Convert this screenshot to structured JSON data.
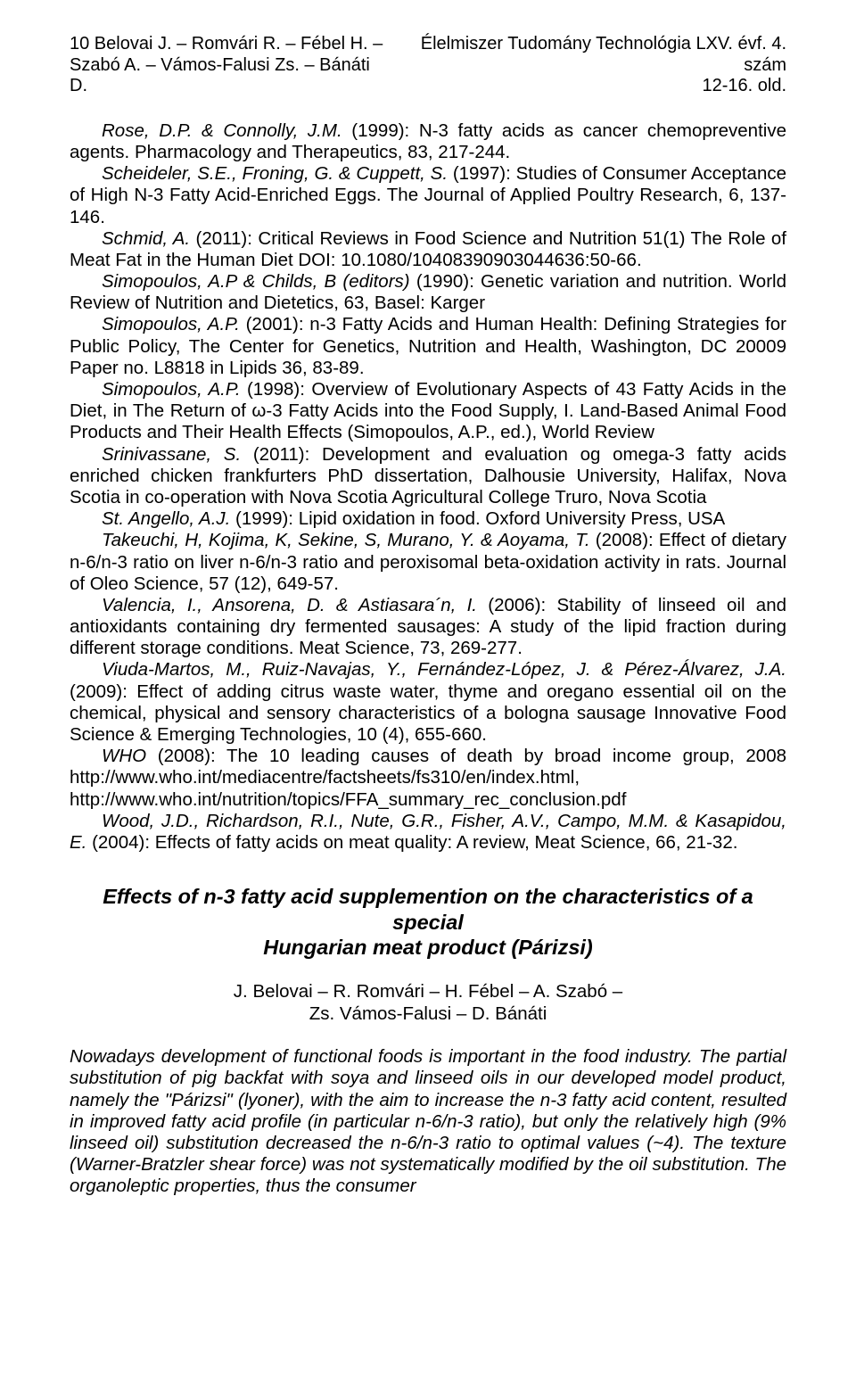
{
  "header": {
    "left_line1": "10  Belovai J. – Romvári R. – Fébel H. –",
    "left_line2": "Szabó A. – Vámos-Falusi Zs. – Bánáti D.",
    "right_line1": "Élelmiszer Tudomány Technológia LXV. évf. 4. szám",
    "right_line2": "12-16. old."
  },
  "refs": [
    {
      "pre": "Rose, D.P. & Connolly, J.M.",
      "post": " (1999): N-3 fatty acids as cancer chemopreventive agents. Pharmacology and Therapeutics, 83, 217-244."
    },
    {
      "pre": "Scheideler, S.E., Froning, G. & Cuppett, S.",
      "post": " (1997): Studies of Consumer Acceptance of High N-3 Fatty Acid-Enriched Eggs. The Journal of Applied Poultry Research, 6, 137-146."
    },
    {
      "pre": "Schmid, A.",
      "post": " (2011): Critical Reviews in Food Science and Nutrition 51(1) The Role of Meat Fat in the Human Diet DOI: 10.1080/10408390903044636:50-66."
    },
    {
      "pre": "Simopoulos, A.P & Childs, B (editors)",
      "post": " (1990): Genetic variation and nutrition. World Review of Nutrition and Dietetics, 63, Basel: Karger"
    },
    {
      "pre": "Simopoulos, A.P.",
      "post": " (2001): n-3 Fatty Acids and Human Health: Defining Strategies for Public Policy, The Center for Genetics, Nutrition and Health, Washington, DC 20009 Paper no. L8818 in Lipids 36, 83-89."
    },
    {
      "pre": "Simopoulos, A.P.",
      "post": " (1998): Overview of Evolutionary Aspects of 43 Fatty Acids in the Diet, in The Return of ω-3 Fatty Acids into the Food Supply, I. Land-Based Animal Food Products and Their Health Effects (Simopoulos, A.P., ed.), World Review"
    },
    {
      "pre": "Srinivassane, S.",
      "post": " (2011): Development and evaluation og omega-3 fatty acids enriched chicken frankfurters PhD dissertation, Dalhousie University, Halifax, Nova Scotia in co-operation with Nova Scotia Agricultural College Truro, Nova Scotia"
    },
    {
      "pre": "St. Angello, A.J.",
      "post": " (1999): Lipid oxidation in food. Oxford University Press, USA"
    },
    {
      "pre": "Takeuchi, H, Kojima, K, Sekine, S, Murano, Y. & Aoyama, T.",
      "post": " (2008): Effect of dietary n-6/n-3 ratio on liver n-6/n-3 ratio and peroxisomal beta-oxidation activity in rats. Journal of Oleo Science, 57 (12), 649-57."
    },
    {
      "pre": "Valencia, I., Ansorena, D. & Astiasara´n, I.",
      "post": " (2006): Stability of linseed oil and antioxidants containing dry fermented sausages: A study of the lipid fraction during different storage conditions. Meat Science, 73, 269-277."
    },
    {
      "pre": "Viuda-Martos, M., Ruiz-Navajas, Y., Fernández-López, J. & Pérez-Álvarez, J.A.",
      "post": " (2009): Effect of adding citrus waste water, thyme and oregano essential oil on the chemical, physical and sensory characteristics of a bologna sausage Innovative Food Science & Emerging Technologies, 10 (4), 655-660."
    },
    {
      "pre": "WHO",
      "post": " (2008): The 10 leading causes of death by broad income group, 2008 http://www.who.int/mediacentre/factsheets/fs310/en/index.html, http://www.who.int/nutrition/topics/FFA_summary_rec_conclusion.pdf"
    },
    {
      "pre": "Wood, J.D., Richardson, R.I., Nute, G.R., Fisher, A.V., Campo, M.M. & Kasapidou, E.",
      "post": " (2004): Effects of fatty acids on meat quality: A review, Meat Science, 66, 21-32."
    }
  ],
  "title_line1": "Effects of n-3 fatty acid supplemention on the characteristics of a special",
  "title_line2": "Hungarian meat product (Párizsi)",
  "authors_line1": "J. Belovai – R. Romvári – H. Fébel – A. Szabó –",
  "authors_line2": "Zs. Vámos-Falusi – D. Bánáti",
  "abstract": "Nowadays development of functional foods is important in the food industry. The partial substitution of pig backfat with soya and linseed oils in our developed model product, namely the \"Párizsi\" (lyoner), with the aim to increase the n-3 fatty acid content, resulted in improved fatty acid profile (in particular n-6/n-3 ratio), but only the relatively high (9% linseed oil) substitution decreased the n-6/n-3 ratio to optimal values (~4). The texture (Warner-Bratzler shear force) was not systematically modified by the oil substitution. The organoleptic properties, thus the consumer"
}
